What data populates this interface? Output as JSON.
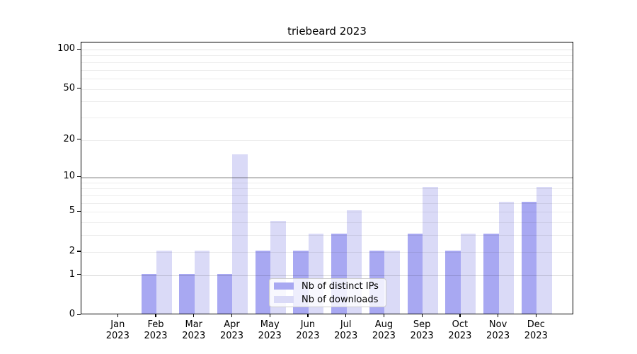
{
  "chart_data": {
    "type": "bar",
    "title": "triebeard 2023",
    "categories": [
      "Jan 2023",
      "Feb 2023",
      "Mar 2023",
      "Apr 2023",
      "May 2023",
      "Jun 2023",
      "Jul 2023",
      "Aug 2023",
      "Sep 2023",
      "Oct 2023",
      "Nov 2023",
      "Dec 2023"
    ],
    "series": [
      {
        "name": "Nb of distinct IPs",
        "color": "#a8a8f2",
        "values": [
          0,
          1,
          1,
          1,
          2,
          2,
          3,
          2,
          3,
          2,
          3,
          6
        ]
      },
      {
        "name": "Nb of downloads",
        "color": "#dadaf7",
        "values": [
          0,
          2,
          2,
          15,
          4,
          3,
          5,
          2,
          8,
          3,
          6,
          8
        ]
      }
    ],
    "xlabel": "",
    "ylabel": "",
    "y_scale": "log1p",
    "y_ticks": [
      0,
      1,
      2,
      5,
      10,
      20,
      50,
      100
    ],
    "y_gridlines": [
      1,
      2,
      3,
      4,
      5,
      6,
      7,
      8,
      9,
      10,
      20,
      30,
      40,
      50,
      60,
      70,
      80,
      90,
      100
    ],
    "ylim": [
      0,
      113
    ],
    "grid": "horizontal",
    "legend_position": "lower center inside"
  },
  "colors": {
    "grid_minor": "rgba(0,0,0,0.07)",
    "grid_one": "rgba(0,0,0,0.16)",
    "grid_ten": "rgba(0,0,0,0.24)",
    "grid_hundred": "rgba(0,0,0,0.10)",
    "axis": "#000000"
  }
}
